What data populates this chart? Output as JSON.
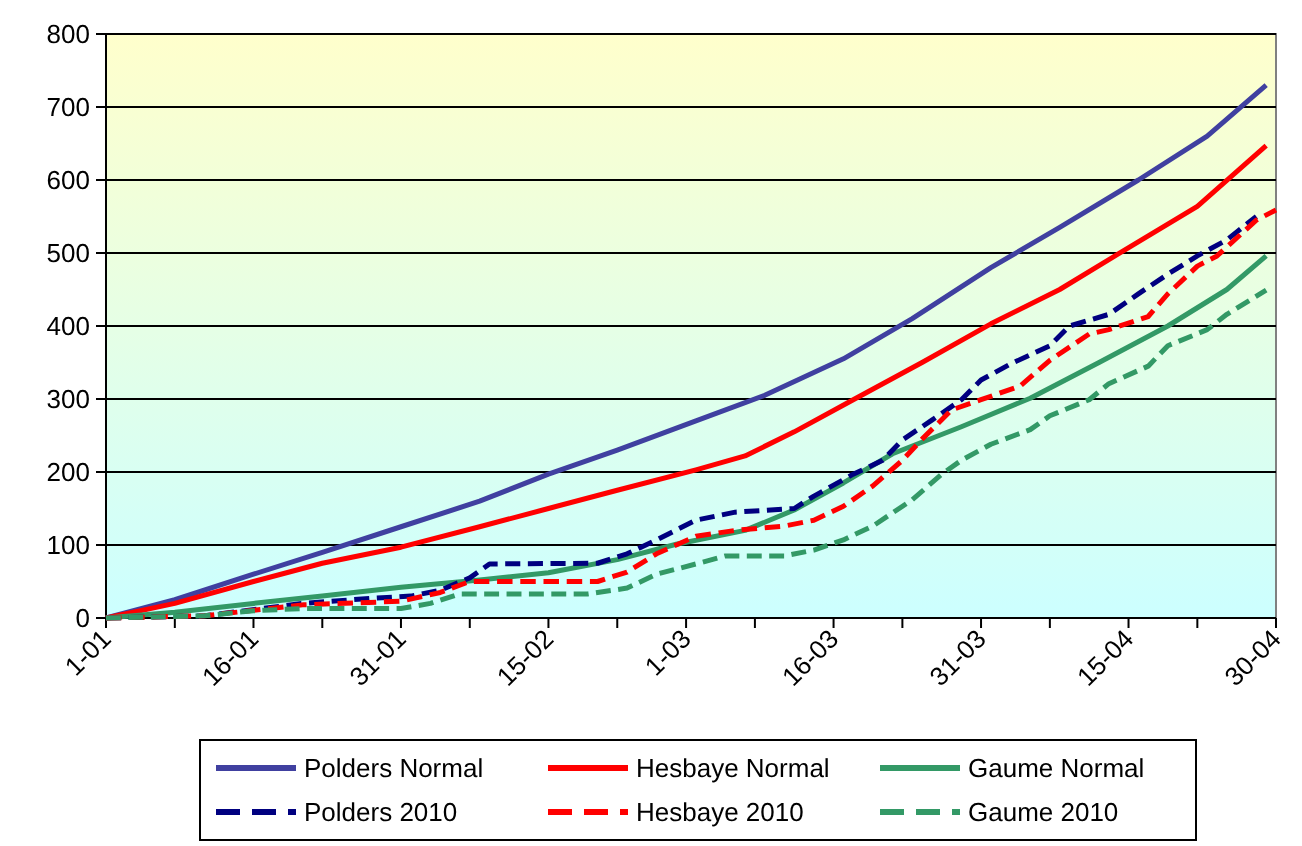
{
  "chart_data": {
    "type": "line",
    "xlim": [
      "--01-01",
      "--04-30"
    ],
    "ylim": [
      0,
      800
    ],
    "yticks": [
      0,
      100,
      200,
      300,
      400,
      500,
      600,
      700,
      800
    ],
    "xticks": [
      {
        "value": "--01-01",
        "label": "1-01"
      },
      {
        "value": "--01-08",
        "label": null
      },
      {
        "value": "--01-16",
        "label": "16-01"
      },
      {
        "value": "--01-23",
        "label": null
      },
      {
        "value": "--01-31",
        "label": "31-01"
      },
      {
        "value": "--02-07",
        "label": null
      },
      {
        "value": "--02-15",
        "label": "15-02"
      },
      {
        "value": "--02-22",
        "label": null
      },
      {
        "value": "--03-01",
        "label": "1-03"
      },
      {
        "value": "--03-08",
        "label": null
      },
      {
        "value": "--03-16",
        "label": "16-03"
      },
      {
        "value": "--03-23",
        "label": null
      },
      {
        "value": "--03-31",
        "label": "31-03"
      },
      {
        "value": "--04-07",
        "label": null
      },
      {
        "value": "--04-15",
        "label": "15-04"
      },
      {
        "value": "--04-22",
        "label": null
      },
      {
        "value": "--04-30",
        "label": "30-04"
      }
    ],
    "grid": "y",
    "legend": "bottom",
    "series": [
      {
        "name": "Polders Normal",
        "color": "#4040a0",
        "line_style": "solid",
        "x": [
          "--01-01",
          "--01-08",
          "--01-16",
          "--01-23",
          "--01-31",
          "--02-08",
          "--02-15",
          "--02-22",
          "--03-02",
          "--03-09",
          "--03-17",
          "--03-24",
          "--04-01",
          "--04-08",
          "--04-16",
          "--04-23",
          "--04-29"
        ],
        "values": [
          0,
          25,
          60,
          90,
          125,
          160,
          197,
          230,
          270,
          305,
          355,
          410,
          480,
          535,
          600,
          660,
          730
        ]
      },
      {
        "name": "Hesbaye Normal",
        "color": "#ff0000",
        "line_style": "solid",
        "x": [
          "--01-01",
          "--01-08",
          "--01-16",
          "--01-23",
          "--01-31",
          "--02-08",
          "--02-15",
          "--02-22",
          "--03-02",
          "--03-07",
          "--03-12",
          "--03-18",
          "--03-25",
          "--04-01",
          "--04-08",
          "--04-14",
          "--04-22",
          "--04-29"
        ],
        "values": [
          0,
          20,
          50,
          75,
          97,
          125,
          150,
          175,
          203,
          222,
          255,
          299,
          350,
          403,
          450,
          499,
          564,
          647
        ]
      },
      {
        "name": "Gaume Normal",
        "color": "#339966",
        "line_style": "solid",
        "x": [
          "--01-01",
          "--01-08",
          "--01-16",
          "--01-23",
          "--01-31",
          "--02-08",
          "--02-15",
          "--02-22",
          "--02-28",
          "--03-07",
          "--03-12",
          "--03-17",
          "--03-22",
          "--03-29",
          "--04-05",
          "--04-12",
          "--04-19",
          "--04-25",
          "--04-29"
        ],
        "values": [
          0,
          8,
          20,
          30,
          42,
          52,
          62,
          80,
          101,
          120,
          148,
          185,
          225,
          262,
          301,
          350,
          400,
          450,
          496
        ]
      },
      {
        "name": "Polders 2010",
        "color": "#000080",
        "line_style": "dashed",
        "x": [
          "--01-01",
          "--01-11",
          "--01-21",
          "--01-28",
          "--02-01",
          "--02-04",
          "--02-07",
          "--02-09",
          "--02-20",
          "--02-23",
          "--02-26",
          "--03-02",
          "--03-06",
          "--03-12",
          "--03-14",
          "--03-18",
          "--03-21",
          "--03-23",
          "--03-26",
          "--03-29",
          "--03-31",
          "--04-03",
          "--04-07",
          "--04-09",
          "--04-13",
          "--04-16",
          "--04-19",
          "--04-22",
          "--04-25",
          "--04-28"
        ],
        "values": [
          0,
          3,
          20,
          27,
          30,
          38,
          55,
          74,
          75,
          88,
          107,
          134,
          145,
          150,
          167,
          197,
          216,
          244,
          271,
          299,
          326,
          348,
          373,
          400,
          416,
          444,
          471,
          496,
          518,
          550
        ]
      },
      {
        "name": "Hesbaye 2010",
        "color": "#ff0000",
        "line_style": "dashed",
        "x": [
          "--01-01",
          "--01-11",
          "--01-21",
          "--01-31",
          "--02-04",
          "--02-07",
          "--02-20",
          "--02-23",
          "--02-26",
          "--03-02",
          "--03-06",
          "--03-11",
          "--03-14",
          "--03-17",
          "--03-20",
          "--03-23",
          "--03-25",
          "--03-28",
          "--03-31",
          "--04-04",
          "--04-07",
          "--04-11",
          "--04-13",
          "--04-17",
          "--04-19",
          "--04-22",
          "--04-24",
          "--04-28",
          "--04-30"
        ],
        "values": [
          0,
          3,
          18,
          23,
          35,
          50,
          50,
          63,
          88,
          112,
          120,
          126,
          134,
          153,
          181,
          216,
          245,
          285,
          299,
          318,
          353,
          389,
          395,
          413,
          444,
          482,
          496,
          545,
          559
        ]
      },
      {
        "name": "Gaume 2010",
        "color": "#339966",
        "line_style": "dashed",
        "x": [
          "--01-01",
          "--01-11",
          "--01-16",
          "--01-21",
          "--01-31",
          "--02-03",
          "--02-06",
          "--02-19",
          "--02-23",
          "--02-26",
          "--03-02",
          "--03-05",
          "--03-11",
          "--03-14",
          "--03-17",
          "--03-20",
          "--03-24",
          "--03-27",
          "--03-29",
          "--04-01",
          "--04-05",
          "--04-07",
          "--04-11",
          "--04-13",
          "--04-17",
          "--04-19",
          "--04-23",
          "--04-25",
          "--04-29"
        ],
        "values": [
          0,
          3,
          10,
          13,
          13,
          20,
          33,
          33,
          41,
          60,
          74,
          85,
          85,
          93,
          107,
          126,
          162,
          197,
          216,
          238,
          258,
          277,
          299,
          321,
          345,
          373,
          395,
          416,
          449
        ]
      }
    ]
  }
}
